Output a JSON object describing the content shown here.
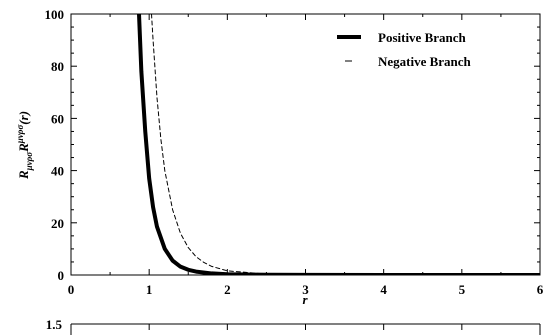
{
  "chart_data": [
    {
      "type": "line",
      "title": "",
      "xlabel": "r",
      "ylabel": "R_{μνρσ}R^{μνρσ}(r)",
      "xlim": [
        0,
        6
      ],
      "ylim": [
        0,
        100
      ],
      "x_ticks": [
        "0",
        "1",
        "2",
        "3",
        "4",
        "5",
        "6"
      ],
      "y_ticks": [
        "0",
        "20",
        "40",
        "60",
        "80",
        "100"
      ],
      "grid": false,
      "legend_position": "top-right",
      "series": [
        {
          "name": "Positive Branch",
          "style": "solid-thick",
          "color": "#000000",
          "x": [
            0.87,
            0.9,
            0.95,
            1.0,
            1.05,
            1.1,
            1.2,
            1.3,
            1.4,
            1.5,
            1.6,
            1.8,
            2.0,
            2.5,
            3.0,
            4.0,
            5.0,
            6.0
          ],
          "y": [
            100,
            78,
            55,
            37,
            26,
            18.5,
            10,
            5.5,
            3.2,
            2.0,
            1.3,
            0.6,
            0.3,
            0.08,
            0.03,
            0.01,
            0,
            0
          ]
        },
        {
          "name": "Negative Branch",
          "style": "dashed-thin",
          "color": "#000000",
          "x": [
            1.03,
            1.05,
            1.1,
            1.15,
            1.2,
            1.3,
            1.4,
            1.5,
            1.6,
            1.7,
            1.8,
            2.0,
            2.5,
            3.0,
            4.0,
            5.0,
            6.0
          ],
          "y": [
            100,
            90,
            68,
            52,
            40,
            25,
            16,
            10.5,
            7,
            4.8,
            3.3,
            1.6,
            0.35,
            0.1,
            0.02,
            0,
            0
          ]
        }
      ]
    },
    {
      "type": "line",
      "title": "",
      "xlabel": "",
      "ylabel": "",
      "y_ticks": [
        "1.5"
      ],
      "series": []
    }
  ]
}
